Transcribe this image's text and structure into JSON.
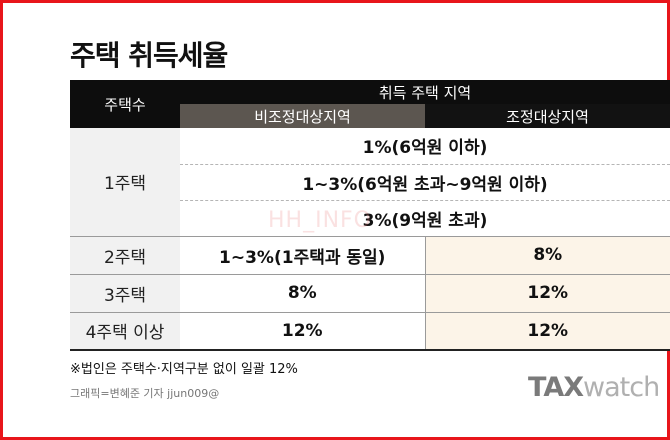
{
  "title": "주택 취득세율",
  "watermark": "HH_INFO",
  "table": {
    "col_header": "주택수",
    "group_header": "취득 주택 지역",
    "sub_header_left": "비조정대상지역",
    "sub_header_right": "조정대상지역",
    "rows": [
      {
        "label": "1주택",
        "merged_values": [
          "1%(6억원 이하)",
          "1~3%(6억원 초과~9억원 이하)",
          "3%(9억원 초과)"
        ]
      },
      {
        "label": "2주택",
        "left": "1~3%(1주택과 동일)",
        "right": "8%"
      },
      {
        "label": "3주택",
        "left": "8%",
        "right": "12%"
      },
      {
        "label": "4주택 이상",
        "left": "12%",
        "right": "12%"
      }
    ]
  },
  "footnote": "※법인은 주택수·지역구분 없이 일괄 12%",
  "credit": "그래픽=변혜준 기자 jjun009@",
  "logo": {
    "part1": "TAX",
    "part2": "watch"
  },
  "colors": {
    "frame": "#e8151b",
    "header_black": "#0d0d0d",
    "header_grey": "#5c5650",
    "row_label_bg": "#f1f1f1",
    "adjusted_area_bg": "#fcf4e8"
  }
}
